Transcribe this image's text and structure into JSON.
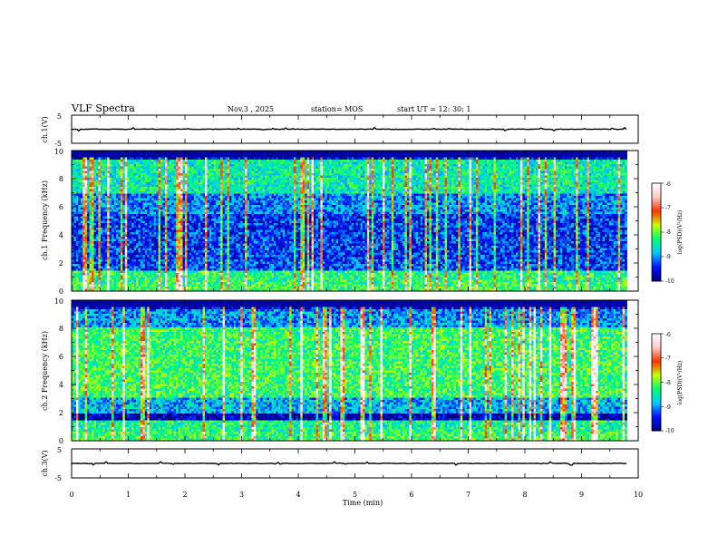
{
  "header": {
    "title": "VLF Spectra",
    "date": "Nov.3 , 2025",
    "station": "station= MOS",
    "start": "start UT = 12: 30: 1"
  },
  "colors": {
    "background": "#ffffff",
    "axis": "#000000",
    "noise_floor": "#000040",
    "colormap": [
      "#00007a",
      "#0010ff",
      "#00c8ff",
      "#00ff70",
      "#c8ff00",
      "#ff3000",
      "#ffc8c8",
      "#ffffff"
    ]
  },
  "chart_data": [
    {
      "id": "ch1_waveform",
      "type": "line",
      "ylabel": "ch.1(V)",
      "ylim": [
        -5,
        5
      ],
      "yticks": [
        "5",
        "-5"
      ],
      "baseline": 0,
      "xlim": [
        0,
        10
      ]
    },
    {
      "id": "ch1_spectrogram",
      "type": "heatmap",
      "ylabel": "ch.1 Frequency (kHz)",
      "ylim": [
        0,
        10
      ],
      "yticks": [
        "0",
        "2",
        "4",
        "6",
        "8",
        "10"
      ],
      "xlim": [
        0,
        10
      ],
      "data_end_min": 9.8,
      "colorbar": {
        "label": "log(PSD)(V²/Hz)",
        "range": [
          -10,
          -6
        ],
        "ticks": [
          "-6",
          "-7",
          "-8",
          "-9",
          "-10"
        ]
      }
    },
    {
      "id": "ch2_spectrogram",
      "type": "heatmap",
      "ylabel": "ch.2 Frequency (kHz)",
      "ylim": [
        0,
        10
      ],
      "yticks": [
        "0",
        "2",
        "4",
        "6",
        "8",
        "10"
      ],
      "xlim": [
        0,
        10
      ],
      "data_end_min": 9.8,
      "colorbar": {
        "label": "log(PSD)(V²/Hz)",
        "range": [
          -10,
          -6
        ],
        "ticks": [
          "-6",
          "-7",
          "-8",
          "-9",
          "-10"
        ]
      }
    },
    {
      "id": "ch3_waveform",
      "type": "line",
      "ylabel": "ch.3(V)",
      "ylim": [
        -5,
        5
      ],
      "yticks": [
        "5",
        "-5"
      ],
      "baseline": 0,
      "xlim": [
        0,
        10
      ],
      "xlabel": "Time (min)",
      "xticks": [
        "0",
        "1",
        "2",
        "3",
        "4",
        "5",
        "6",
        "7",
        "8",
        "9",
        "10"
      ]
    }
  ]
}
